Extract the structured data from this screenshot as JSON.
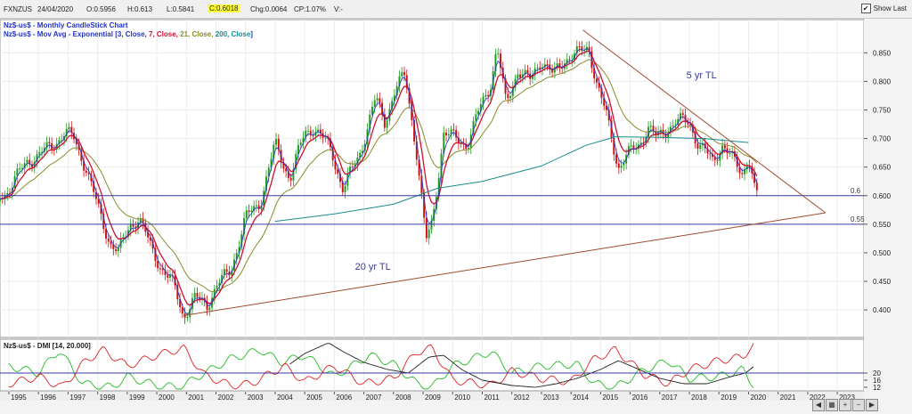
{
  "header": {
    "symbol": "FXNZUS",
    "date": "24/04/2020",
    "open": "O:0.5956",
    "high": "H:0.613",
    "low": "L:0.5841",
    "close": "C:0.6018",
    "change": "Chg:0.0064",
    "change_pct": "CP:1.07%",
    "volume": "V:-",
    "show_last_label": "Show Last",
    "show_last_checked": true
  },
  "colors": {
    "bull": "#1e9c1e",
    "bear": "#cc1111",
    "ema3": "#2233cc",
    "ema7": "#cc1133",
    "ema21": "#8a8a2a",
    "ema200": "#1a8c8c",
    "trendline": "#a04a30",
    "hline": "#3a3aa8",
    "dmi_plus": "#22bb22",
    "dmi_minus": "#dd2222",
    "adx": "#222222"
  },
  "chart_data": [
    {
      "type": "candlestick",
      "title": "Nz$-us$ - Monthly CandleStick Chart",
      "indicator_label": {
        "prefix": "Nz$-us$ - Mov Avg - Exponential [",
        "params": [
          {
            "text": "3, Close, ",
            "color": "#2233cc"
          },
          {
            "text": "7, Close, ",
            "color": "#cc1133"
          },
          {
            "text": "21, Close, ",
            "color": "#8a8a2a"
          },
          {
            "text": "200, Close",
            "color": "#1a8c8c"
          }
        ],
        "suffix": "]"
      },
      "x_tick_labels": [
        "1995",
        "1996",
        "1997",
        "1998",
        "1999",
        "2000",
        "2001",
        "2002",
        "2003",
        "2004",
        "2005",
        "2006",
        "2007",
        "2008",
        "2009",
        "2010",
        "2011",
        "2012",
        "2013",
        "2014",
        "2015",
        "2016",
        "2017",
        "2018",
        "2019",
        "2020",
        "2021",
        "2022",
        "2023"
      ],
      "y_ticks": [
        0.4,
        0.45,
        0.5,
        0.55,
        0.6,
        0.65,
        0.7,
        0.75,
        0.8,
        0.85
      ],
      "y_tick_labels": [
        "0.400",
        "0.450",
        "0.500",
        "0.550",
        "0.600",
        "0.650",
        "0.700",
        "0.750",
        "0.800",
        "0.850"
      ],
      "ylim": [
        0.355,
        0.905
      ],
      "xlim": [
        1994.7,
        2023.9
      ],
      "key_points": [
        [
          1994.7,
          0.6
        ],
        [
          1995.0,
          0.61
        ],
        [
          1995.6,
          0.66
        ],
        [
          1996.0,
          0.67
        ],
        [
          1996.5,
          0.69
        ],
        [
          1996.9,
          0.71
        ],
        [
          1997.2,
          0.7
        ],
        [
          1997.6,
          0.65
        ],
        [
          1998.0,
          0.58
        ],
        [
          1998.4,
          0.52
        ],
        [
          1998.7,
          0.5
        ],
        [
          1999.1,
          0.55
        ],
        [
          1999.4,
          0.56
        ],
        [
          1999.8,
          0.51
        ],
        [
          2000.2,
          0.47
        ],
        [
          2000.6,
          0.44
        ],
        [
          2000.9,
          0.39
        ],
        [
          2001.3,
          0.42
        ],
        [
          2001.7,
          0.41
        ],
        [
          2002.0,
          0.44
        ],
        [
          2002.5,
          0.47
        ],
        [
          2003.0,
          0.56
        ],
        [
          2003.5,
          0.59
        ],
        [
          2004.0,
          0.69
        ],
        [
          2004.5,
          0.63
        ],
        [
          2005.0,
          0.71
        ],
        [
          2005.3,
          0.72
        ],
        [
          2005.9,
          0.68
        ],
        [
          2006.3,
          0.61
        ],
        [
          2006.9,
          0.68
        ],
        [
          2007.4,
          0.77
        ],
        [
          2007.7,
          0.73
        ],
        [
          2008.1,
          0.79
        ],
        [
          2008.4,
          0.81
        ],
        [
          2008.8,
          0.67
        ],
        [
          2009.1,
          0.52
        ],
        [
          2009.3,
          0.55
        ],
        [
          2009.7,
          0.71
        ],
        [
          2010.1,
          0.7
        ],
        [
          2010.5,
          0.69
        ],
        [
          2010.9,
          0.75
        ],
        [
          2011.3,
          0.8
        ],
        [
          2011.5,
          0.86
        ],
        [
          2011.8,
          0.76
        ],
        [
          2012.2,
          0.82
        ],
        [
          2012.6,
          0.8
        ],
        [
          2013.0,
          0.84
        ],
        [
          2013.4,
          0.81
        ],
        [
          2013.8,
          0.84
        ],
        [
          2014.3,
          0.85
        ],
        [
          2014.6,
          0.86
        ],
        [
          2014.9,
          0.79
        ],
        [
          2015.2,
          0.74
        ],
        [
          2015.6,
          0.65
        ],
        [
          2015.9,
          0.67
        ],
        [
          2016.3,
          0.69
        ],
        [
          2016.6,
          0.72
        ],
        [
          2016.9,
          0.7
        ],
        [
          2017.3,
          0.72
        ],
        [
          2017.6,
          0.73
        ],
        [
          2018.0,
          0.73
        ],
        [
          2018.3,
          0.69
        ],
        [
          2018.8,
          0.66
        ],
        [
          2019.1,
          0.69
        ],
        [
          2019.5,
          0.66
        ],
        [
          2019.8,
          0.64
        ],
        [
          2020.0,
          0.67
        ],
        [
          2020.2,
          0.61
        ],
        [
          2020.3,
          0.6
        ]
      ],
      "ema200": [
        [
          2004.0,
          0.555
        ],
        [
          2006.0,
          0.568
        ],
        [
          2008.0,
          0.585
        ],
        [
          2009.5,
          0.613
        ],
        [
          2011.0,
          0.625
        ],
        [
          2013.0,
          0.652
        ],
        [
          2014.5,
          0.688
        ],
        [
          2015.5,
          0.703
        ],
        [
          2017.0,
          0.702
        ],
        [
          2018.5,
          0.7
        ],
        [
          2020.0,
          0.693
        ]
      ],
      "hlines": [
        {
          "value": 0.6,
          "label": "0.6"
        },
        {
          "value": 0.55,
          "label": "0.55"
        }
      ],
      "trendlines": [
        {
          "name": "20 yr TL",
          "from": [
            2000.9,
            0.39
          ],
          "to": [
            2022.6,
            0.57
          ]
        },
        {
          "name": "5 yr TL",
          "from": [
            2014.4,
            0.89
          ],
          "to": [
            2022.6,
            0.57
          ]
        }
      ],
      "annotations": [
        {
          "text": "5 yr TL",
          "x": 2017.9,
          "y": 0.805
        },
        {
          "text": "20 yr TL",
          "x": 2006.7,
          "y": 0.47
        }
      ]
    },
    {
      "type": "line",
      "title": "Nz$-us$ - DMI [14, 20.000]",
      "y_ticks": [
        12,
        16,
        20
      ],
      "y_tick_labels": [
        "12",
        "16",
        "20"
      ],
      "hline": 20,
      "ylim": [
        11,
        38
      ],
      "series": [
        {
          "key": "plus_di",
          "points": [
            [
              1995,
              24
            ],
            [
              1996,
              20
            ],
            [
              1996.7,
              33
            ],
            [
              1997.5,
              14
            ],
            [
              1998.5,
              12
            ],
            [
              1999,
              18
            ],
            [
              2000,
              13
            ],
            [
              2000.8,
              12
            ],
            [
              2001.5,
              19
            ],
            [
              2002.5,
              28
            ],
            [
              2003.5,
              33
            ],
            [
              2004.2,
              26
            ],
            [
              2005,
              30
            ],
            [
              2006,
              18
            ],
            [
              2007.2,
              30
            ],
            [
              2008,
              25
            ],
            [
              2008.8,
              14
            ],
            [
              2009.3,
              12
            ],
            [
              2010,
              24
            ],
            [
              2011.3,
              32
            ],
            [
              2012,
              20
            ],
            [
              2013,
              24
            ],
            [
              2014.2,
              25
            ],
            [
              2014.8,
              14
            ],
            [
              2015.5,
              12
            ],
            [
              2016.5,
              22
            ],
            [
              2017.3,
              27
            ],
            [
              2018,
              17
            ],
            [
              2019,
              18
            ],
            [
              2019.8,
              22
            ],
            [
              2020.0,
              17
            ],
            [
              2020.2,
              13
            ]
          ]
        },
        {
          "key": "minus_di",
          "points": [
            [
              1995,
              14
            ],
            [
              1996,
              18
            ],
            [
              1996.8,
              12
            ],
            [
              1997.6,
              27
            ],
            [
              1998.2,
              33
            ],
            [
              1999,
              24
            ],
            [
              2000,
              30
            ],
            [
              2000.9,
              34
            ],
            [
              2001.6,
              19
            ],
            [
              2002.5,
              13
            ],
            [
              2003.2,
              14
            ],
            [
              2004.3,
              24
            ],
            [
              2005,
              15
            ],
            [
              2006,
              24
            ],
            [
              2007,
              14
            ],
            [
              2008,
              17
            ],
            [
              2008.8,
              32
            ],
            [
              2009.3,
              34
            ],
            [
              2010,
              16
            ],
            [
              2011.3,
              13
            ],
            [
              2012,
              21
            ],
            [
              2013,
              17
            ],
            [
              2014,
              15
            ],
            [
              2014.8,
              28
            ],
            [
              2015.5,
              33
            ],
            [
              2016.5,
              19
            ],
            [
              2017.3,
              14
            ],
            [
              2018,
              22
            ],
            [
              2019,
              27
            ],
            [
              2019.8,
              29
            ],
            [
              2020.0,
              33
            ],
            [
              2020.2,
              36
            ]
          ]
        },
        {
          "key": "adx",
          "points": [
            [
              2004.5,
              25
            ],
            [
              2005,
              31
            ],
            [
              2005.8,
              37
            ],
            [
              2006.3,
              32
            ],
            [
              2007,
              26
            ],
            [
              2007.8,
              22
            ],
            [
              2008.5,
              20
            ],
            [
              2009.2,
              29
            ],
            [
              2009.7,
              30
            ],
            [
              2010.3,
              22
            ],
            [
              2011,
              16
            ],
            [
              2012,
              13
            ],
            [
              2012.8,
              12
            ],
            [
              2013.5,
              14
            ],
            [
              2014.2,
              17
            ],
            [
              2015,
              22
            ],
            [
              2015.6,
              27
            ],
            [
              2016.3,
              22
            ],
            [
              2017,
              17
            ],
            [
              2017.8,
              14
            ],
            [
              2018.6,
              14
            ],
            [
              2019.4,
              18
            ],
            [
              2019.9,
              20
            ],
            [
              2020.2,
              24
            ]
          ]
        }
      ]
    }
  ]
}
